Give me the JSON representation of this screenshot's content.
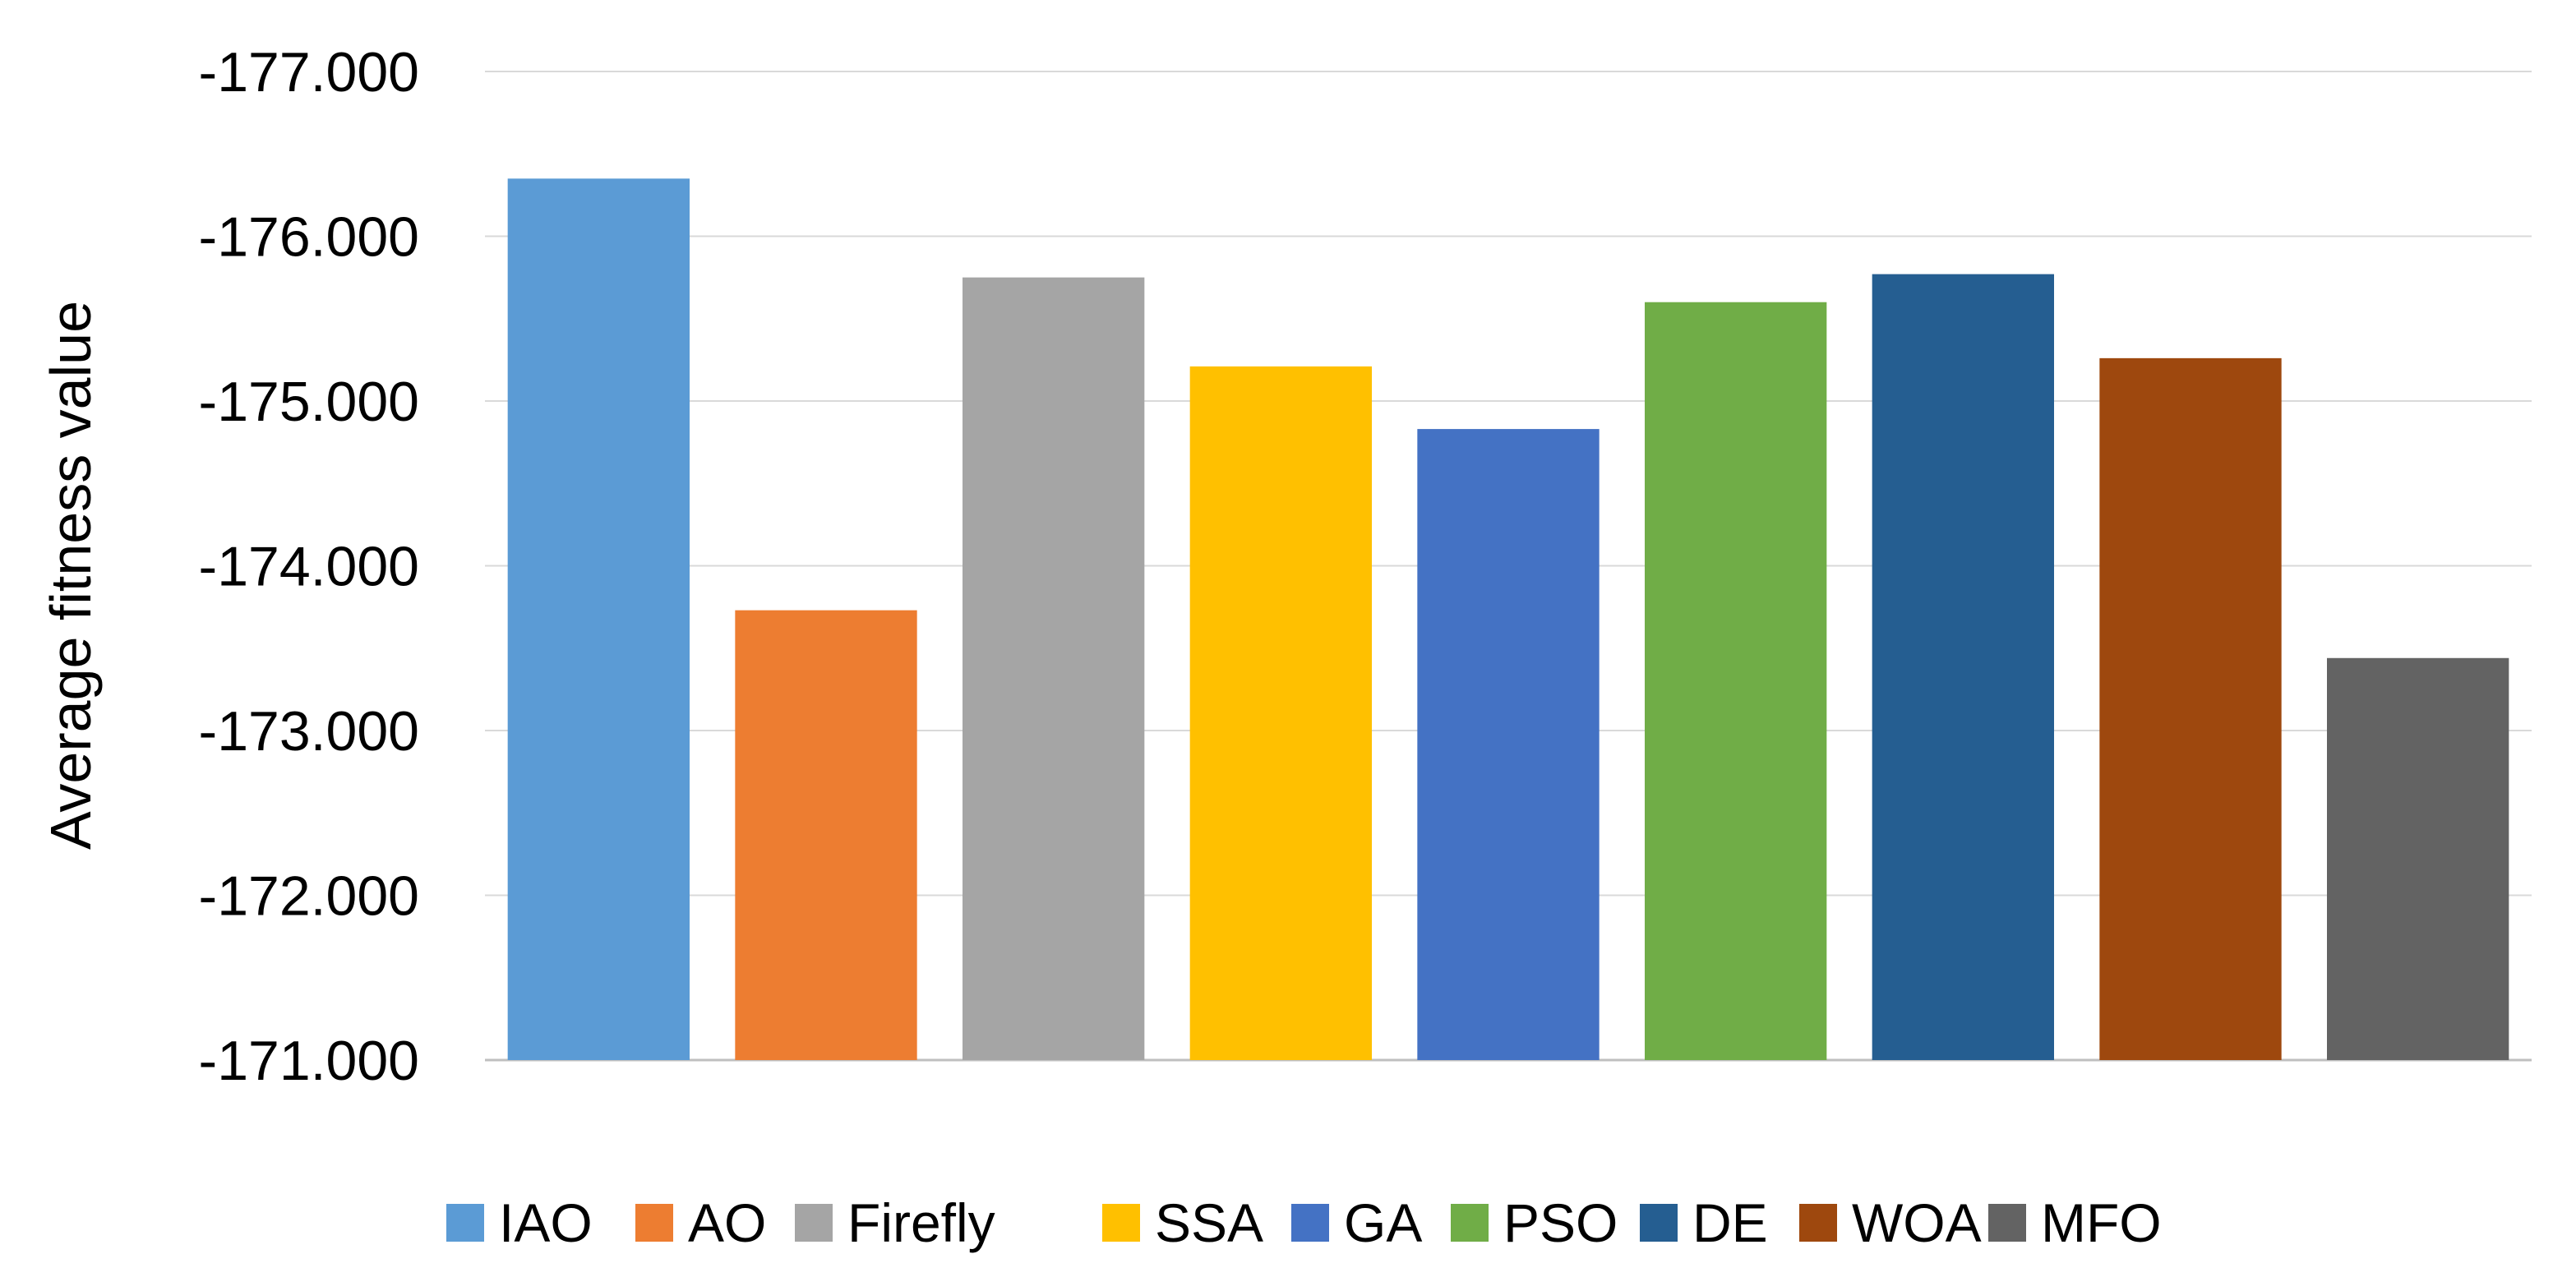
{
  "chart_data": {
    "type": "bar",
    "title": "",
    "xlabel": "",
    "ylabel": "Average fitness value",
    "ylim": [
      -171,
      -177
    ],
    "yticks": [
      -171,
      -172,
      -173,
      -174,
      -175,
      -176,
      -177
    ],
    "ytick_labels": [
      "-171.000",
      "-172.000",
      "-173.000",
      "-174.000",
      "-175.000",
      "-176.000",
      "-177.000"
    ],
    "grid": true,
    "legend_position": "bottom",
    "categories": [
      "IAO",
      "AO",
      "Firefly",
      "SSA",
      "GA",
      "PSO",
      "DE",
      "WOA",
      "MFO"
    ],
    "values": [
      -176.35,
      -173.73,
      -175.75,
      -175.21,
      -174.83,
      -175.6,
      -175.77,
      -175.26,
      -173.44
    ],
    "colors": [
      "#5B9BD5",
      "#ED7D31",
      "#A5A5A5",
      "#FFC000",
      "#4472C4",
      "#70AD47",
      "#255E91",
      "#9E480E",
      "#636363"
    ]
  }
}
